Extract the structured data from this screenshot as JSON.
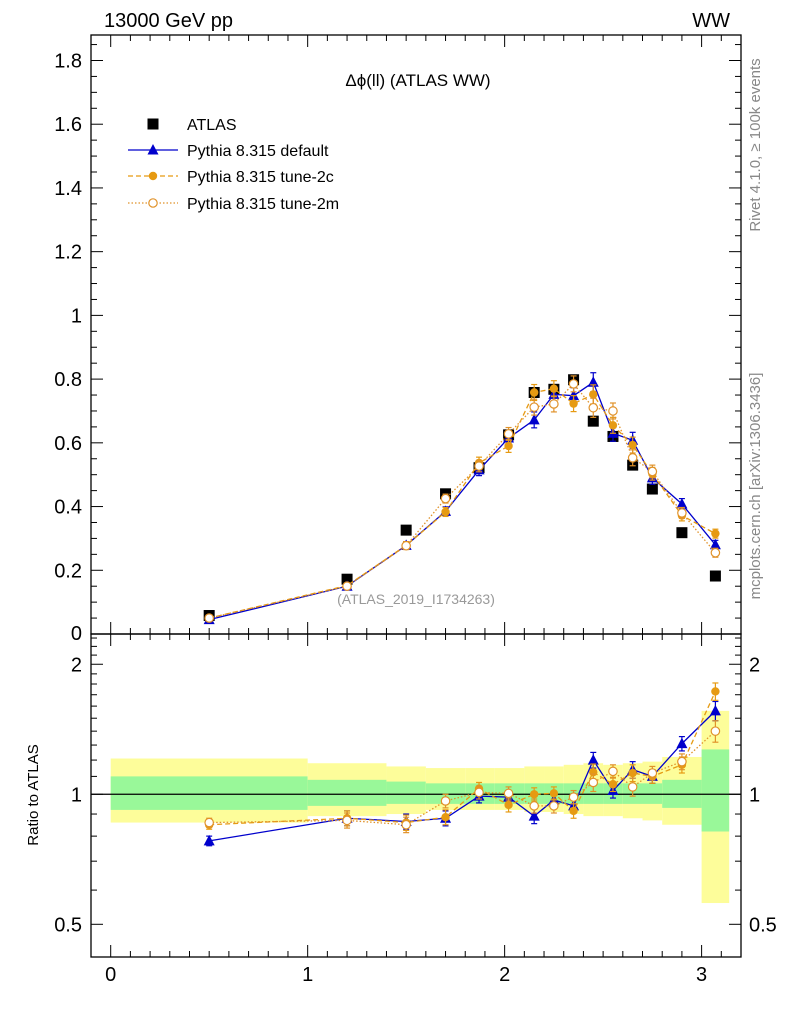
{
  "header": {
    "beam_label": "13000 GeV pp",
    "process_label": "WW"
  },
  "side_labels": {
    "rivet": "Rivet 4.1.0, ≥ 100k events",
    "mcplots": "mcplots.cern.ch [arXiv:1306.3436]"
  },
  "colors": {
    "atlas": "#000000",
    "default": "#0000cc",
    "tune2c": "#e69a12",
    "tune2m": "#e0922a",
    "band_inner": "#99f899",
    "band_outer": "#fdfd9a"
  },
  "chart_data": [
    {
      "type": "scatter",
      "title": "Δϕ(ll) (ATLAS WW)",
      "analysis_label": "(ATLAS_2019_I1734263)",
      "xlabel": "",
      "ylabel": "",
      "xlim": [
        -0.1,
        3.2
      ],
      "ylim": [
        0,
        1.88
      ],
      "yticks": [
        0.2,
        0.4,
        0.6,
        0.8,
        1,
        1.2,
        1.4,
        1.6,
        1.8
      ],
      "ytick_labels": [
        "0.2",
        "0.4",
        "0.6",
        "0.8",
        "1",
        "1.2",
        "1.4",
        "1.6",
        "1.8"
      ],
      "ytick_bottom_label": "0",
      "legend": [
        "ATLAS",
        "Pythia 8.315 default",
        "Pythia 8.315 tune-2c",
        "Pythia 8.315 tune-2m"
      ],
      "legend_position": "top-left",
      "bins": [
        {
          "lo": 0.0,
          "hi": 1.0
        },
        {
          "lo": 1.0,
          "hi": 1.4
        },
        {
          "lo": 1.4,
          "hi": 1.6
        },
        {
          "lo": 1.6,
          "hi": 1.8
        },
        {
          "lo": 1.8,
          "hi": 1.95
        },
        {
          "lo": 1.95,
          "hi": 2.1
        },
        {
          "lo": 2.1,
          "hi": 2.2
        },
        {
          "lo": 2.2,
          "hi": 2.3
        },
        {
          "lo": 2.3,
          "hi": 2.4
        },
        {
          "lo": 2.4,
          "hi": 2.5
        },
        {
          "lo": 2.5,
          "hi": 2.6
        },
        {
          "lo": 2.6,
          "hi": 2.7
        },
        {
          "lo": 2.7,
          "hi": 2.8
        },
        {
          "lo": 2.8,
          "hi": 3.0
        },
        {
          "lo": 3.0,
          "hi": 3.14
        }
      ],
      "series": [
        {
          "name": "ATLAS",
          "style": "square",
          "x": [
            0.5,
            1.2,
            1.5,
            1.7,
            1.87,
            2.02,
            2.15,
            2.25,
            2.35,
            2.45,
            2.55,
            2.65,
            2.75,
            2.9,
            3.07
          ],
          "y": [
            0.058,
            0.172,
            0.326,
            0.44,
            0.522,
            0.625,
            0.758,
            0.768,
            0.798,
            0.668,
            0.62,
            0.53,
            0.455,
            0.318,
            0.182
          ],
          "err": []
        },
        {
          "name": "Pythia 8.315 default",
          "style": "triangle",
          "x": [
            0.5,
            1.2,
            1.5,
            1.7,
            1.87,
            2.02,
            2.15,
            2.25,
            2.35,
            2.45,
            2.55,
            2.65,
            2.75,
            2.9,
            3.07
          ],
          "y": [
            0.045,
            0.15,
            0.278,
            0.385,
            0.515,
            0.615,
            0.672,
            0.752,
            0.748,
            0.79,
            0.63,
            0.608,
            0.49,
            0.408,
            0.28
          ],
          "err": [
            0.004,
            0.006,
            0.012,
            0.014,
            0.018,
            0.02,
            0.025,
            0.025,
            0.025,
            0.03,
            0.025,
            0.025,
            0.02,
            0.017,
            0.014
          ]
        },
        {
          "name": "Pythia 8.315 tune-2c",
          "style": "filled-circle",
          "x": [
            0.5,
            1.2,
            1.5,
            1.7,
            1.87,
            2.02,
            2.15,
            2.25,
            2.35,
            2.45,
            2.55,
            2.65,
            2.75,
            2.9,
            3.07
          ],
          "y": [
            0.05,
            0.152,
            0.278,
            0.383,
            0.537,
            0.59,
            0.758,
            0.77,
            0.723,
            0.752,
            0.655,
            0.593,
            0.503,
            0.372,
            0.315
          ],
          "err": [
            0.004,
            0.006,
            0.012,
            0.014,
            0.018,
            0.02,
            0.025,
            0.025,
            0.025,
            0.03,
            0.025,
            0.025,
            0.02,
            0.017,
            0.014
          ]
        },
        {
          "name": "Pythia 8.315 tune-2m",
          "style": "open-circle",
          "x": [
            0.5,
            1.2,
            1.5,
            1.7,
            1.87,
            2.02,
            2.15,
            2.25,
            2.35,
            2.45,
            2.55,
            2.65,
            2.75,
            2.9,
            3.07
          ],
          "y": [
            0.05,
            0.15,
            0.277,
            0.425,
            0.527,
            0.628,
            0.712,
            0.722,
            0.785,
            0.71,
            0.7,
            0.553,
            0.51,
            0.38,
            0.255
          ],
          "err": [
            0.004,
            0.006,
            0.012,
            0.014,
            0.018,
            0.02,
            0.025,
            0.025,
            0.025,
            0.03,
            0.025,
            0.025,
            0.02,
            0.017,
            0.014
          ]
        }
      ]
    },
    {
      "type": "scatter",
      "title": "",
      "xlabel": "",
      "ylabel": "Ratio to ATLAS",
      "xlim": [
        -0.1,
        3.2
      ],
      "ylim": [
        0.42,
        2.35
      ],
      "yscale": "log",
      "xticks": [
        0,
        1,
        2,
        3
      ],
      "xtick_labels": [
        "0",
        "1",
        "2",
        "3"
      ],
      "yticks": [
        0.5,
        1,
        2
      ],
      "ytick_labels": [
        "0.5",
        "1",
        "2"
      ],
      "bands": {
        "inner": [
          {
            "lo": 0.92,
            "hi": 1.1
          },
          {
            "lo": 0.94,
            "hi": 1.08
          },
          {
            "lo": 0.95,
            "hi": 1.07
          },
          {
            "lo": 0.95,
            "hi": 1.06
          },
          {
            "lo": 0.95,
            "hi": 1.06
          },
          {
            "lo": 0.95,
            "hi": 1.06
          },
          {
            "lo": 0.95,
            "hi": 1.06
          },
          {
            "lo": 0.95,
            "hi": 1.06
          },
          {
            "lo": 0.95,
            "hi": 1.06
          },
          {
            "lo": 0.95,
            "hi": 1.06
          },
          {
            "lo": 0.95,
            "hi": 1.06
          },
          {
            "lo": 0.95,
            "hi": 1.06
          },
          {
            "lo": 0.95,
            "hi": 1.06
          },
          {
            "lo": 0.93,
            "hi": 1.08
          },
          {
            "lo": 0.82,
            "hi": 1.27
          }
        ],
        "outer": [
          {
            "lo": 0.86,
            "hi": 1.21
          },
          {
            "lo": 0.89,
            "hi": 1.18
          },
          {
            "lo": 0.9,
            "hi": 1.16
          },
          {
            "lo": 0.92,
            "hi": 1.15
          },
          {
            "lo": 0.92,
            "hi": 1.15
          },
          {
            "lo": 0.92,
            "hi": 1.15
          },
          {
            "lo": 0.91,
            "hi": 1.16
          },
          {
            "lo": 0.91,
            "hi": 1.16
          },
          {
            "lo": 0.9,
            "hi": 1.17
          },
          {
            "lo": 0.89,
            "hi": 1.18
          },
          {
            "lo": 0.89,
            "hi": 1.17
          },
          {
            "lo": 0.88,
            "hi": 1.18
          },
          {
            "lo": 0.87,
            "hi": 1.19
          },
          {
            "lo": 0.85,
            "hi": 1.22
          },
          {
            "lo": 0.56,
            "hi": 1.56
          }
        ]
      },
      "series": [
        {
          "name": "Pythia 8.315 default",
          "style": "triangle",
          "x": [
            0.5,
            1.2,
            1.5,
            1.7,
            1.87,
            2.02,
            2.15,
            2.25,
            2.35,
            2.45,
            2.55,
            2.65,
            2.75,
            2.9,
            3.07
          ],
          "y": [
            0.78,
            0.88,
            0.865,
            0.88,
            0.99,
            0.985,
            0.89,
            0.97,
            0.94,
            1.2,
            1.02,
            1.14,
            1.1,
            1.31,
            1.56
          ],
          "err": [
            0.02,
            0.035,
            0.035,
            0.035,
            0.035,
            0.035,
            0.035,
            0.035,
            0.035,
            0.05,
            0.04,
            0.05,
            0.04,
            0.05,
            0.08
          ]
        },
        {
          "name": "Pythia 8.315 tune-2c",
          "style": "filled-circle",
          "x": [
            0.5,
            1.2,
            1.5,
            1.7,
            1.87,
            2.02,
            2.15,
            2.25,
            2.35,
            2.45,
            2.55,
            2.65,
            2.75,
            2.9,
            3.07
          ],
          "y": [
            0.85,
            0.88,
            0.86,
            0.885,
            1.03,
            0.945,
            1.0,
            1.005,
            0.915,
            1.125,
            1.055,
            1.12,
            1.1,
            1.17,
            1.73
          ],
          "err": [
            0.02,
            0.035,
            0.035,
            0.035,
            0.035,
            0.035,
            0.035,
            0.035,
            0.035,
            0.05,
            0.04,
            0.05,
            0.04,
            0.05,
            0.08
          ]
        },
        {
          "name": "Pythia 8.315 tune-2m",
          "style": "open-circle",
          "x": [
            0.5,
            1.2,
            1.5,
            1.7,
            1.87,
            2.02,
            2.15,
            2.25,
            2.35,
            2.45,
            2.55,
            2.65,
            2.75,
            2.9,
            3.07
          ],
          "y": [
            0.86,
            0.87,
            0.85,
            0.965,
            1.01,
            1.005,
            0.94,
            0.94,
            0.985,
            1.065,
            1.13,
            1.04,
            1.12,
            1.19,
            1.4
          ],
          "err": [
            0.02,
            0.035,
            0.035,
            0.035,
            0.035,
            0.035,
            0.035,
            0.035,
            0.035,
            0.05,
            0.04,
            0.05,
            0.04,
            0.05,
            0.08
          ]
        }
      ]
    }
  ]
}
